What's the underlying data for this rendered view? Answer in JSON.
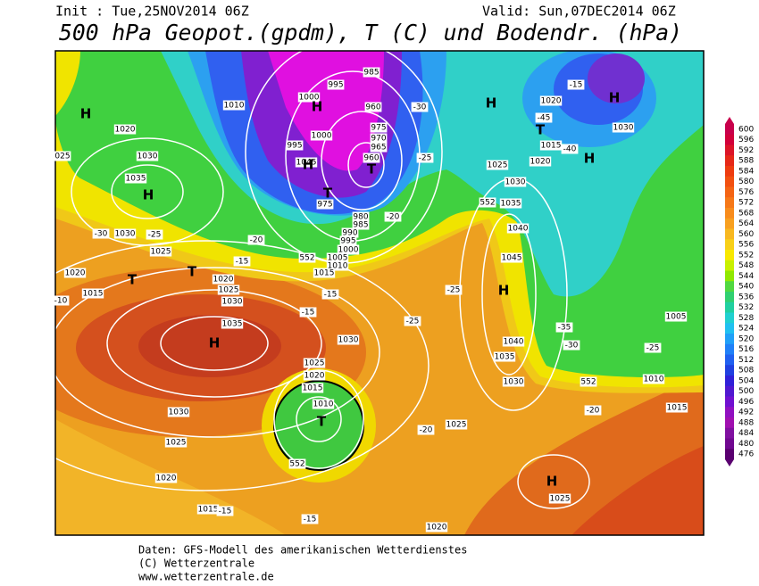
{
  "header": {
    "init": "Init : Tue,25NOV2014 06Z",
    "valid": "Valid: Sun,07DEC2014 06Z",
    "title": "500 hPa Geopot.(gpdm), T (C) und Bodendr. (hPa)"
  },
  "footer": [
    "Daten: GFS-Modell des amerikanischen Wetterdienstes",
    "(C) Wetterzentrale",
    "www.wetterzentrale.de"
  ],
  "colorbar": {
    "values": [
      600,
      596,
      592,
      588,
      584,
      580,
      576,
      572,
      568,
      564,
      560,
      556,
      552,
      548,
      544,
      540,
      536,
      532,
      528,
      524,
      520,
      516,
      512,
      508,
      504,
      500,
      496,
      492,
      488,
      484,
      480,
      476
    ]
  },
  "map": {
    "labels": [
      "1010",
      "1020",
      "1030",
      "1035",
      "1030",
      "1025",
      "1020",
      "1015",
      "1020",
      "1025",
      "1030",
      "1035",
      "1030",
      "1025",
      "1020",
      "1015",
      "1030",
      "1025",
      "1020",
      "1015",
      "1010",
      "1025",
      "1020",
      "1025",
      "1035",
      "1040",
      "1030",
      "1045",
      "1040",
      "1035",
      "1030",
      "1025",
      "1020",
      "1015",
      "1020",
      "1030",
      "1010",
      "1015",
      "1005",
      "985",
      "995",
      "1000",
      "960",
      "975",
      "970",
      "965",
      "960",
      "1000",
      "995",
      "1045",
      "975",
      "980",
      "985",
      "990",
      "995",
      "1000",
      "1005",
      "1010",
      "1015",
      "552",
      "552",
      "552",
      "552",
      "-30",
      "-25",
      "-20",
      "-15",
      "-15",
      "-15",
      "-25",
      "-25",
      "-30",
      "-35",
      "-25",
      "-20",
      "-20",
      "-15",
      "-15",
      "-20",
      "-25",
      "-30",
      "-10",
      "-45",
      "-40",
      "-15",
      "025"
    ],
    "markers": [
      "H",
      "H",
      "H",
      "H",
      "H",
      "H",
      "H",
      "H",
      "H",
      "H",
      "T",
      "T",
      "T",
      "T",
      "T",
      "T"
    ]
  }
}
